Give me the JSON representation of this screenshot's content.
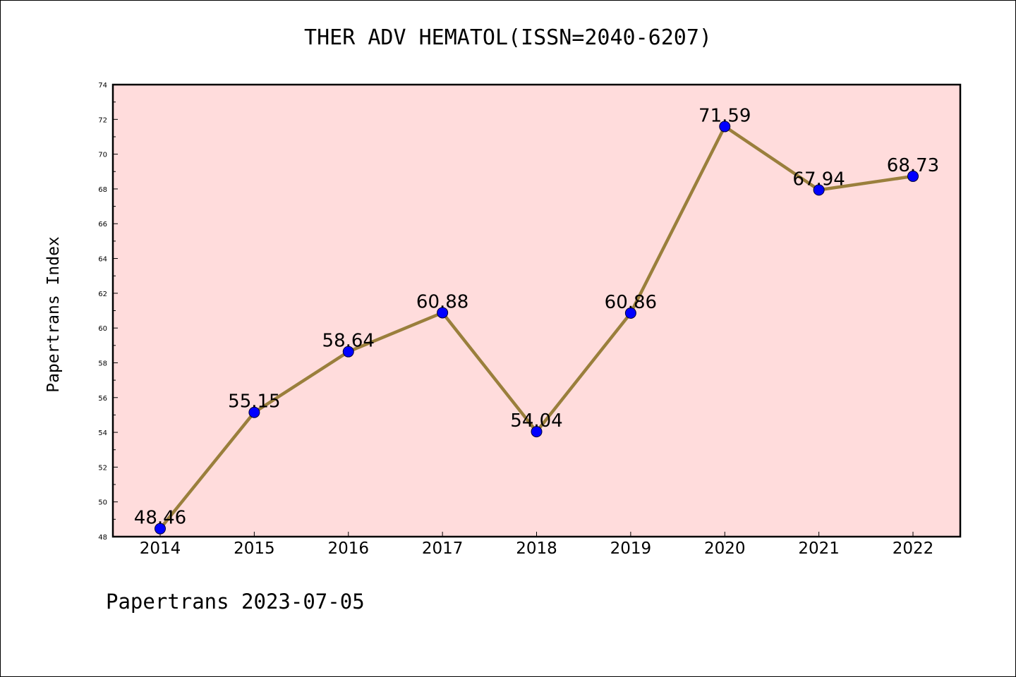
{
  "chart_data": {
    "type": "line",
    "title": "THER ADV HEMATOL(ISSN=2040-6207)",
    "ylabel": "Papertrans Index",
    "xlabel": "",
    "x": [
      "2014",
      "2015",
      "2016",
      "2017",
      "2018",
      "2019",
      "2020",
      "2021",
      "2022"
    ],
    "series": [
      {
        "values": [
          48.46,
          55.15,
          58.64,
          60.88,
          54.04,
          60.86,
          71.59,
          67.94,
          68.73
        ]
      }
    ],
    "data_labels": [
      "48.46",
      "55.15",
      "58.64",
      "60.88",
      "54.04",
      "60.86",
      "71.59",
      "67.94",
      "68.73"
    ],
    "ylim": [
      48,
      74
    ],
    "yticks": [
      "48",
      "50",
      "52",
      "54",
      "56",
      "58",
      "60",
      "62",
      "64",
      "66",
      "68",
      "70",
      "72",
      "74"
    ],
    "grid": false,
    "colors": {
      "line": "#9a7f3c",
      "marker": "#0000ff",
      "plot_background": "#ffdcdc"
    }
  },
  "footer": {
    "text": "Papertrans 2023-07-05"
  }
}
